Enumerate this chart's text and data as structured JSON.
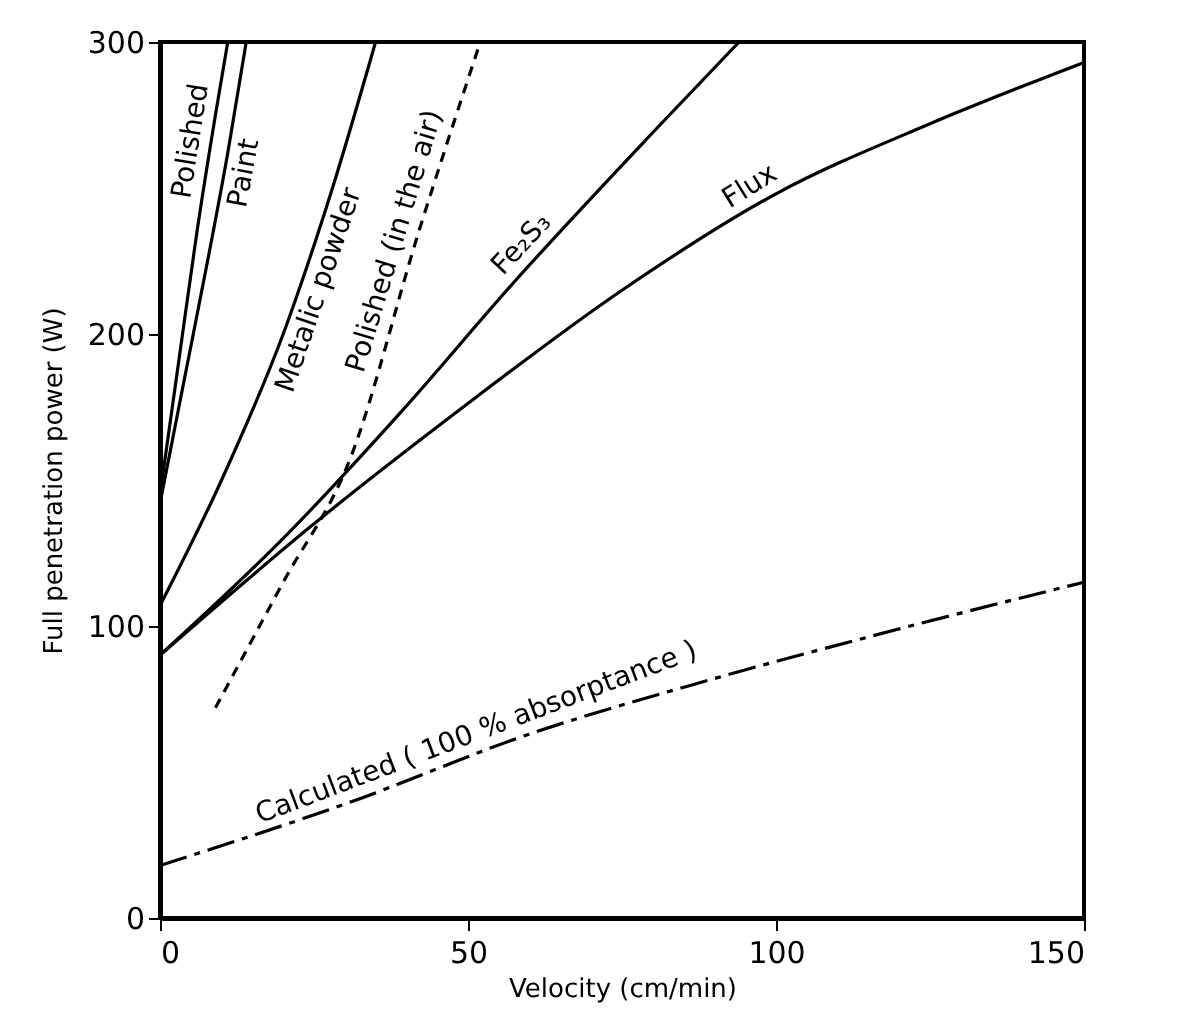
{
  "chart_data": {
    "type": "line",
    "xlabel": "Velocity (cm/min)",
    "ylabel": "Full penetration power (W)",
    "xlim": [
      0,
      150
    ],
    "ylim": [
      0,
      300
    ],
    "xticks": [
      0,
      50,
      100,
      150
    ],
    "yticks": [
      0,
      100,
      200,
      300
    ],
    "grid": false,
    "marker": "none",
    "series": [
      {
        "name": "Polished",
        "color": "#000000",
        "line_style": "solid",
        "x": [
          0,
          3,
          6,
          9,
          11
        ],
        "values": [
          145,
          190,
          235,
          275,
          300
        ]
      },
      {
        "name": "Paint",
        "color": "#000000",
        "line_style": "solid",
        "x": [
          0,
          4,
          8,
          11,
          14
        ],
        "values": [
          142,
          185,
          228,
          262,
          300
        ]
      },
      {
        "name": "Metalic powder",
        "color": "#000000",
        "line_style": "solid",
        "x": [
          0,
          10,
          20,
          28,
          35
        ],
        "values": [
          107,
          150,
          200,
          250,
          300
        ]
      },
      {
        "name": "Polished (in the air)",
        "color": "#000000",
        "line_style": "dashed",
        "x": [
          9,
          20,
          31,
          42,
          52
        ],
        "values": [
          72,
          115,
          158,
          235,
          300
        ]
      },
      {
        "name": "Fe₂S₃",
        "color": "#000000",
        "line_style": "solid",
        "x": [
          0,
          20,
          39,
          58,
          80,
          94
        ],
        "values": [
          90,
          130,
          173,
          219,
          269,
          300
        ]
      },
      {
        "name": "Flux",
        "color": "#000000",
        "line_style": "solid",
        "x": [
          0,
          25,
          48,
          75,
          100,
          125,
          150
        ],
        "values": [
          90,
          135,
          173,
          215,
          248,
          272,
          293
        ]
      },
      {
        "name": "Calculated ( 100 % absorptance )",
        "color": "#000000",
        "line_style": "dashdot",
        "x": [
          0,
          30,
          60,
          90,
          120,
          150
        ],
        "values": [
          18,
          39,
          63,
          82,
          99,
          115
        ]
      }
    ]
  }
}
